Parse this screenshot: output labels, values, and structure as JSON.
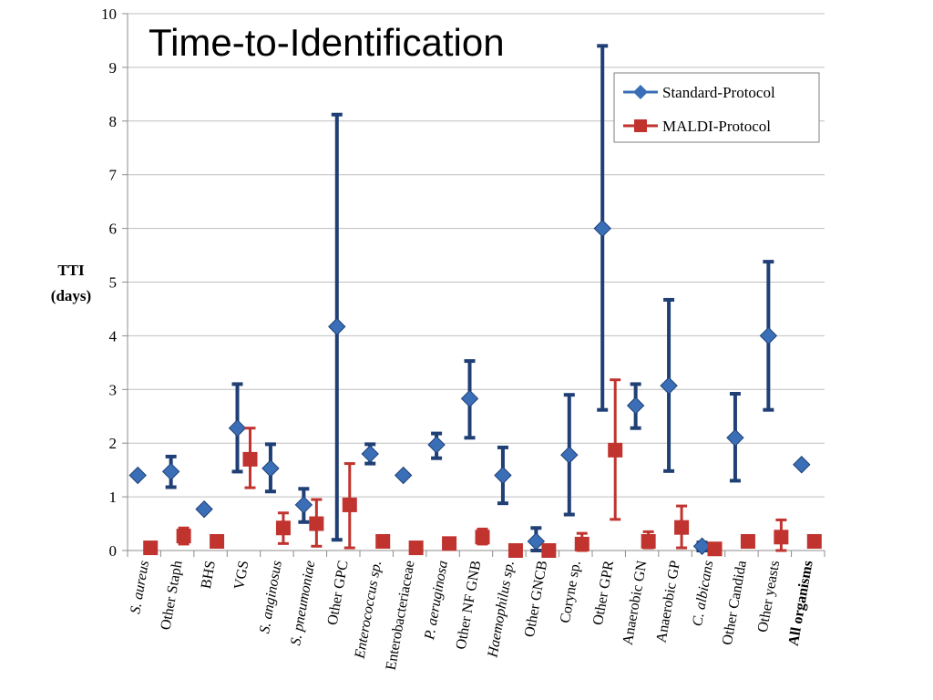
{
  "chart_data": {
    "type": "scatter",
    "title": "Time-to-Identification",
    "ylabel": [
      "TTI",
      "(days)"
    ],
    "xlabel": "",
    "ylim": [
      0,
      10
    ],
    "yticks": [
      0,
      1,
      2,
      3,
      4,
      5,
      6,
      7,
      8,
      9,
      10
    ],
    "grid": "horizontal",
    "legend_position": "top-right",
    "categories": [
      {
        "label": "S. aureus",
        "style": "italic"
      },
      {
        "label": "Other Staph",
        "style": "normal"
      },
      {
        "label": "BHS",
        "style": "normal"
      },
      {
        "label": "VGS",
        "style": "normal"
      },
      {
        "label": "S. anginosus",
        "style": "italic"
      },
      {
        "label": "S. pneumoniae",
        "style": "italic"
      },
      {
        "label": "Other GPC",
        "style": "normal"
      },
      {
        "label": "Enterococcus sp.",
        "style": "italic"
      },
      {
        "label": "Enterobacteriaceae",
        "style": "normal"
      },
      {
        "label": "P. aeruginosa",
        "style": "italic"
      },
      {
        "label": "Other NF GNB",
        "style": "normal"
      },
      {
        "label": "Haemophilus sp.",
        "style": "italic"
      },
      {
        "label": "Other GNCB",
        "style": "normal"
      },
      {
        "label": "Coryne sp.",
        "style": "normal"
      },
      {
        "label": "Other GPR",
        "style": "normal"
      },
      {
        "label": "Anaerobic GN",
        "style": "normal"
      },
      {
        "label": "Anaerobic GP",
        "style": "normal"
      },
      {
        "label": "C. albicans",
        "style": "italic"
      },
      {
        "label": "Other Candida",
        "style": "normal"
      },
      {
        "label": "Other yeasts",
        "style": "normal"
      },
      {
        "label": "All organisms",
        "style": "bold"
      }
    ],
    "series": [
      {
        "name": "Standard-Protocol",
        "color": "#1f3f75",
        "marker_color": "#3a6fb7",
        "marker": "diamond",
        "values": [
          1.4,
          1.47,
          0.77,
          2.28,
          1.53,
          0.85,
          4.17,
          1.8,
          1.4,
          1.97,
          2.83,
          1.4,
          0.17,
          1.78,
          6.0,
          2.7,
          3.07,
          0.08,
          2.1,
          4.0,
          1.6
        ],
        "lower": [
          1.4,
          1.18,
          0.77,
          1.47,
          1.1,
          0.53,
          0.2,
          1.62,
          1.4,
          1.72,
          2.1,
          0.88,
          0.0,
          0.67,
          2.62,
          2.28,
          1.48,
          0.0,
          1.3,
          2.62,
          1.6
        ],
        "upper": [
          1.4,
          1.75,
          0.77,
          3.1,
          1.98,
          1.15,
          8.12,
          1.98,
          1.4,
          2.18,
          3.53,
          1.92,
          0.42,
          2.9,
          9.4,
          3.1,
          4.67,
          0.15,
          2.92,
          5.38,
          1.6
        ]
      },
      {
        "name": "MALDI-Protocol",
        "color": "#c0332e",
        "marker_color": "#c0332e",
        "marker": "square",
        "values": [
          0.05,
          0.27,
          0.17,
          1.7,
          0.42,
          0.5,
          0.85,
          0.17,
          0.05,
          0.13,
          0.25,
          0.0,
          0.0,
          0.12,
          1.87,
          0.17,
          0.43,
          0.03,
          0.17,
          0.25,
          0.17
        ],
        "lower": [
          0.05,
          0.12,
          0.17,
          1.17,
          0.13,
          0.08,
          0.05,
          0.17,
          0.05,
          0.13,
          0.12,
          0.0,
          0.0,
          0.0,
          0.58,
          0.05,
          0.05,
          0.03,
          0.17,
          0.0,
          0.17
        ],
        "upper": [
          0.05,
          0.42,
          0.17,
          2.28,
          0.7,
          0.95,
          1.62,
          0.17,
          0.05,
          0.13,
          0.4,
          0.0,
          0.0,
          0.32,
          3.18,
          0.35,
          0.83,
          0.03,
          0.17,
          0.57,
          0.17
        ]
      }
    ]
  }
}
